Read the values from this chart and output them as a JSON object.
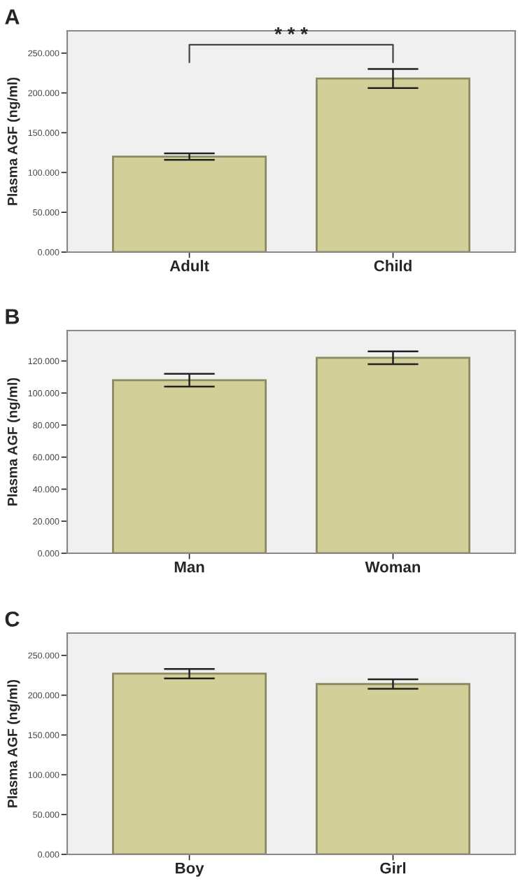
{
  "chart_data": [
    {
      "type": "bar",
      "title": "A",
      "ylabel": "Plasma AGF (ng/ml)",
      "categories": [
        "Adult",
        "Child"
      ],
      "values": [
        120,
        218
      ],
      "errors": [
        4,
        12
      ],
      "color": "#d3cf98",
      "ylim": [
        0,
        278
      ],
      "yticks": [
        {
          "value": 0,
          "label": "0.000"
        },
        {
          "value": 50,
          "label": "50.000"
        },
        {
          "value": 100,
          "label": "100.000"
        },
        {
          "value": 150,
          "label": "150.000"
        },
        {
          "value": 200,
          "label": "200.000"
        },
        {
          "value": 250,
          "label": "250.000"
        }
      ],
      "annotations": [
        "* * *"
      ],
      "grid": false
    },
    {
      "type": "bar",
      "title": "B",
      "ylabel": "Plasma AGF (ng/ml)",
      "categories": [
        "Man",
        "Woman"
      ],
      "values": [
        108,
        122
      ],
      "errors": [
        4,
        4
      ],
      "color": "#d3cf98",
      "ylim": [
        0,
        139
      ],
      "yticks": [
        {
          "value": 0,
          "label": "0.000"
        },
        {
          "value": 20,
          "label": "20.000"
        },
        {
          "value": 40,
          "label": "40.000"
        },
        {
          "value": 60,
          "label": "60.000"
        },
        {
          "value": 80,
          "label": "80.000"
        },
        {
          "value": 100,
          "label": "100.000"
        },
        {
          "value": 120,
          "label": "120.000"
        }
      ],
      "grid": false
    },
    {
      "type": "bar",
      "title": "C",
      "ylabel": "Plasma AGF (ng/ml)",
      "categories": [
        "Boy",
        "Girl"
      ],
      "values": [
        227,
        214
      ],
      "errors": [
        6,
        6
      ],
      "color": "#d3cf98",
      "ylim": [
        0,
        278
      ],
      "yticks": [
        {
          "value": 0,
          "label": "0.000"
        },
        {
          "value": 50,
          "label": "50.000"
        },
        {
          "value": 100,
          "label": "100.000"
        },
        {
          "value": 150,
          "label": "150.000"
        },
        {
          "value": 200,
          "label": "200.000"
        },
        {
          "value": 250,
          "label": "250.000"
        }
      ],
      "grid": false
    }
  ]
}
